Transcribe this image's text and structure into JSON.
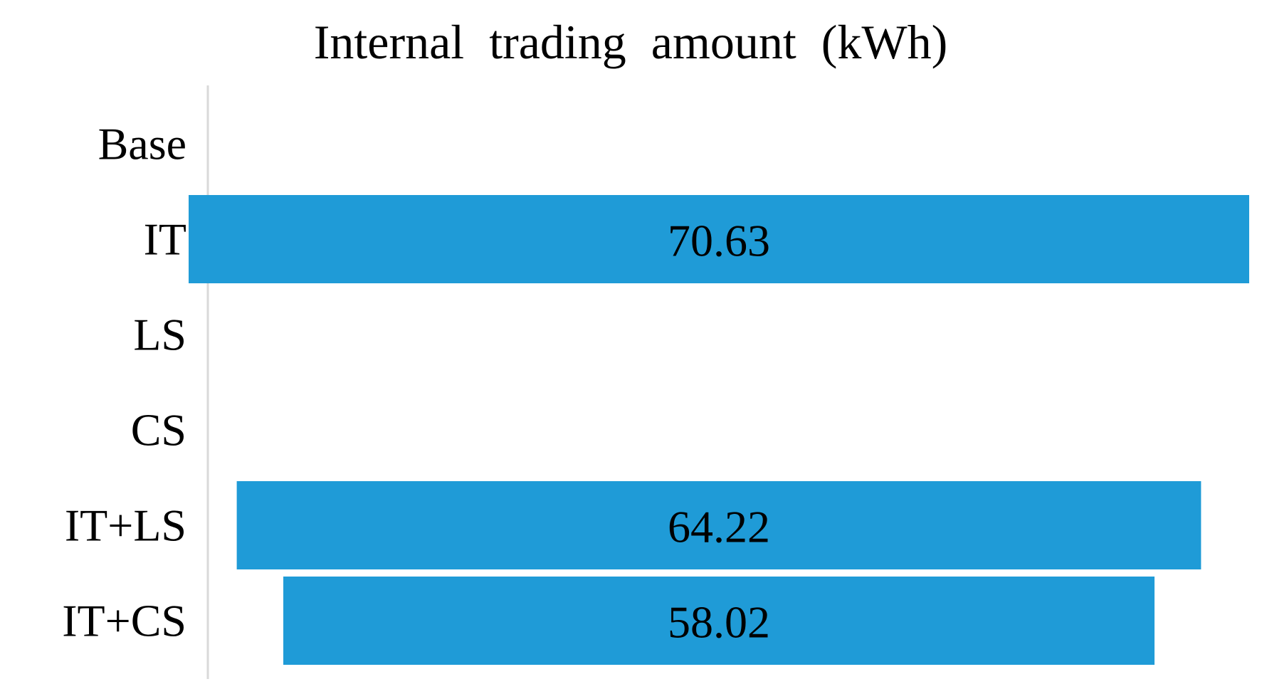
{
  "chart_data": {
    "type": "bar",
    "orientation": "horizontal",
    "style": "funnel",
    "title": "Internal trading amount (kWh)",
    "categories": [
      "Base",
      "IT",
      "LS",
      "CS",
      "IT+LS",
      "IT+CS"
    ],
    "values": [
      0,
      70.63,
      0,
      0,
      64.22,
      58.02
    ],
    "value_labels": [
      "",
      "70.63",
      "",
      "",
      "64.22",
      "58.02"
    ],
    "xlim": [
      0,
      70.63
    ],
    "grid": false,
    "legend": "none",
    "colors": {
      "bar": "#1f9bd7",
      "axis": "#d9d9d9",
      "text": "#000000"
    }
  }
}
